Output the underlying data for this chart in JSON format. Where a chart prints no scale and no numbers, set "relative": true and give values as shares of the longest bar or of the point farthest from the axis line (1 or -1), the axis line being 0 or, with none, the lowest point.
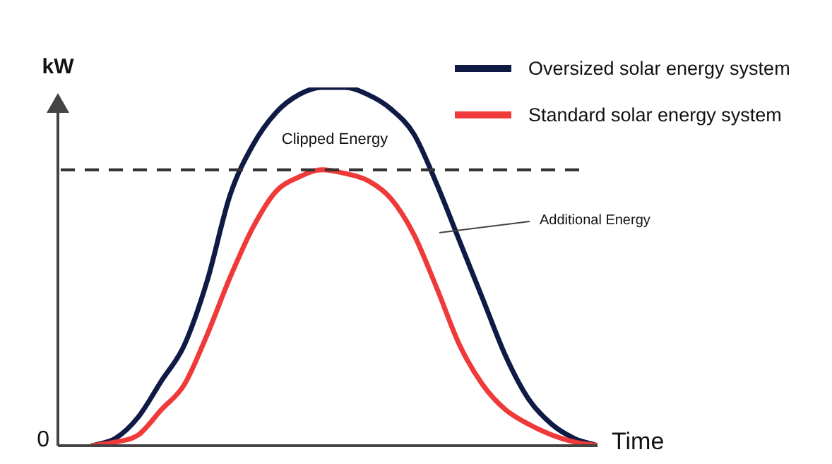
{
  "chart_data": {
    "type": "line",
    "relative": true,
    "xlabel": "Time",
    "ylabel": "kW",
    "legend": "top right",
    "marker": "none",
    "line_style": "solid",
    "categories": [
      null,
      null,
      null,
      null,
      null,
      null,
      null,
      null,
      null,
      null,
      null,
      null,
      null,
      null,
      null,
      null,
      null,
      null,
      null,
      null,
      null,
      null,
      null
    ],
    "series": [
      {
        "name": "Oversized solar energy system",
        "color": "#0f1a45",
        "values": [
          0,
          0.02,
          0.08,
          0.18,
          0.28,
          0.46,
          0.7,
          0.84,
          0.93,
          0.98,
          1.0,
          1.0,
          0.98,
          0.94,
          0.87,
          0.73,
          0.57,
          0.41,
          0.25,
          0.13,
          0.06,
          0.02,
          0
        ]
      },
      {
        "name": "Standard solar energy system",
        "color": "#f03a3a",
        "values": [
          0,
          0.01,
          0.03,
          0.1,
          0.17,
          0.31,
          0.47,
          0.61,
          0.71,
          0.75,
          0.77,
          0.76,
          0.74,
          0.69,
          0.59,
          0.44,
          0.28,
          0.17,
          0.1,
          0.06,
          0.03,
          0.01,
          0
        ]
      }
    ],
    "ref_lines": [
      {
        "axis": "y",
        "value": 0.77,
        "color": "#333333",
        "line_style": "dashed"
      }
    ],
    "annotations": [
      "0",
      "Clipped Energy",
      "Additional Energy"
    ]
  }
}
